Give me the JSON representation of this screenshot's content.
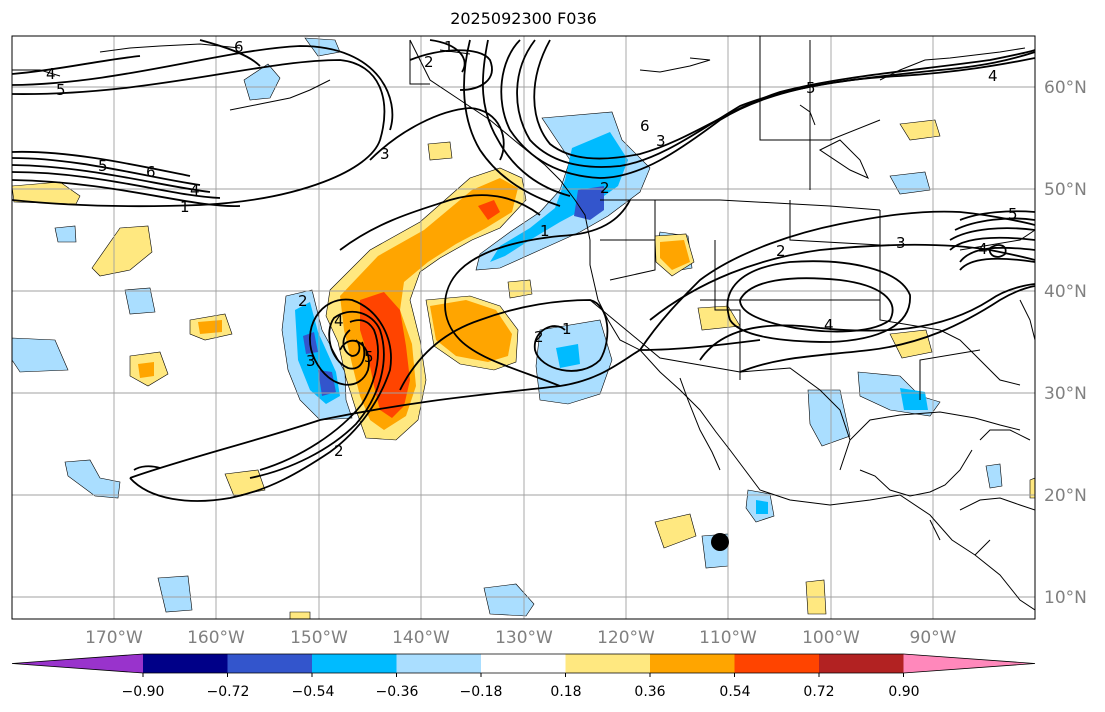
{
  "title": "2025092300 F036",
  "lon_labels": [
    "170°W",
    "160°W",
    "150°W",
    "140°W",
    "130°W",
    "120°W",
    "110°W",
    "100°W",
    "90°W"
  ],
  "lat_labels": [
    "60°N",
    "50°N",
    "40°N",
    "30°N",
    "20°N",
    "10°N"
  ],
  "colorbar": {
    "ticks": [
      "−0.90",
      "−0.72",
      "−0.54",
      "−0.36",
      "−0.18",
      "0.18",
      "0.36",
      "0.54",
      "0.72",
      "0.90"
    ],
    "colors": [
      "#9933cc",
      "#000088",
      "#3355cc",
      "#00bbff",
      "#aadeff",
      "#ffffff",
      "#ffe880",
      "#ffa500",
      "#ff4400",
      "#b22222",
      "#ff88bb"
    ]
  },
  "contour_labels": [
    "1",
    "2",
    "3",
    "4",
    "5",
    "6"
  ],
  "colors": {
    "contour": "#000000",
    "grid": "#a0a0a0",
    "coast": "#000000"
  }
}
